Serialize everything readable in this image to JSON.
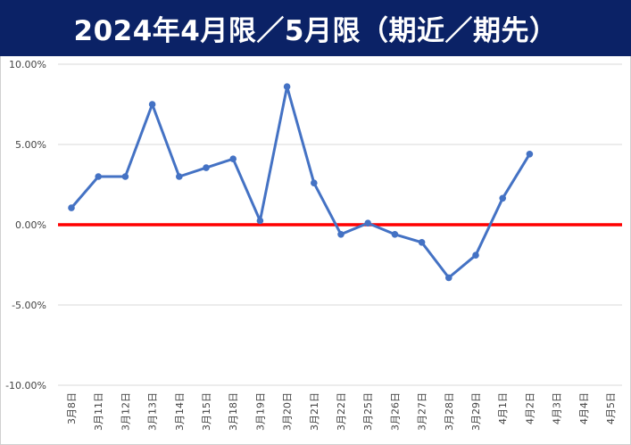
{
  "title": "2024年4月限／5月限（期近／期先）",
  "colors": {
    "title_background": "#0b2266",
    "title_text": "#ffffff",
    "series_line": "#4472c4",
    "zero_line": "#ff0000",
    "gridline": "#d9d9d9"
  },
  "chart_data": {
    "type": "line",
    "title": "2024年4月限／5月限（期近／期先）",
    "xlabel": "",
    "ylabel": "",
    "ylim": [
      -0.1,
      0.1
    ],
    "y_ticks": [
      0.1,
      0.05,
      0.0,
      -0.05,
      -0.1
    ],
    "y_tick_labels": [
      "10.00%",
      "5.00%",
      "0.00%",
      "-5.00%",
      "-10.00%"
    ],
    "grid": true,
    "legend": "none",
    "categories": [
      "3月8日",
      "3月11日",
      "3月12日",
      "3月13日",
      "3月14日",
      "3月15日",
      "3月18日",
      "3月19日",
      "3月20日",
      "3月21日",
      "3月22日",
      "3月25日",
      "3月26日",
      "3月27日",
      "3月28日",
      "3月29日",
      "4月1日",
      "4月2日",
      "4月3日",
      "4月4日",
      "4月5日"
    ],
    "series": [
      {
        "values": [
          0.0105,
          0.03,
          0.03,
          0.075,
          0.03,
          0.0355,
          0.041,
          0.0025,
          0.086,
          0.026,
          -0.006,
          0.001,
          -0.006,
          -0.011,
          -0.033,
          -0.019,
          0.0165,
          0.044,
          null,
          null,
          null
        ]
      }
    ],
    "reference_line": {
      "value": 0.0
    }
  }
}
